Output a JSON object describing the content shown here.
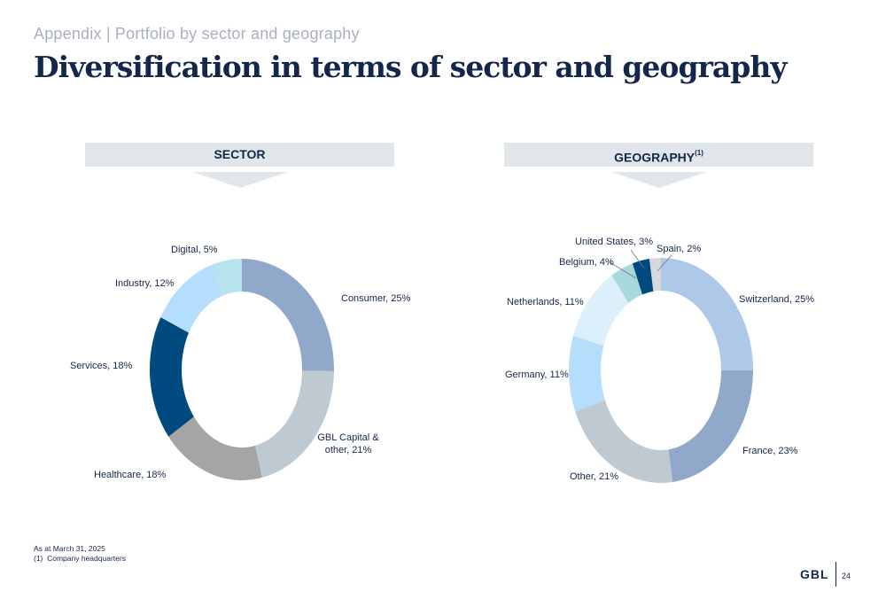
{
  "header": {
    "subtitle": "Appendix | Portfolio by sector and geography",
    "title": "Diversification in terms of sector and geography"
  },
  "bands": {
    "sector": "SECTOR",
    "geography": "GEOGRAPHY",
    "geography_note": "(1)"
  },
  "chart_data": [
    {
      "type": "pie",
      "name": "SECTOR",
      "donut": true,
      "unit": "%",
      "slices": [
        {
          "label": "Consumer, 25%",
          "value": 25,
          "color": "#90a8c9"
        },
        {
          "label": "GBL Capital & other, 21%",
          "value": 21,
          "color": "#bec9d2"
        },
        {
          "label": "Healthcare, 18%",
          "value": 18,
          "color": "#a5a5a5"
        },
        {
          "label": "Services, 18%",
          "value": 18,
          "color": "#004a7f"
        },
        {
          "label": "Industry, 12%",
          "value": 12,
          "color": "#b5ddfc"
        },
        {
          "label": "Digital, 5%",
          "value": 5,
          "color": "#b6e3ec"
        }
      ]
    },
    {
      "type": "pie",
      "name": "GEOGRAPHY",
      "donut": true,
      "unit": "%",
      "slices": [
        {
          "label": "Switzerland, 25%",
          "value": 25,
          "color": "#adc8e8"
        },
        {
          "label": "France, 23%",
          "value": 23,
          "color": "#90a8c9"
        },
        {
          "label": "Other, 21%",
          "value": 21,
          "color": "#bec9d2"
        },
        {
          "label": "Germany, 11%",
          "value": 11,
          "color": "#b5ddfc"
        },
        {
          "label": "Netherlands, 11%",
          "value": 11,
          "color": "#dcf0fb"
        },
        {
          "label": "Belgium, 4%",
          "value": 4,
          "color": "#a9d8dc"
        },
        {
          "label": "United States, 3%",
          "value": 3,
          "color": "#004a7f"
        },
        {
          "label": "Spain, 2%",
          "value": 2,
          "color": "#d6d9dc"
        }
      ]
    }
  ],
  "footnotes": {
    "line1": "As at March 31, 2025",
    "line2": "(1)  Company headquarters"
  },
  "footer": {
    "logo": "GBL",
    "page_number": "24"
  }
}
